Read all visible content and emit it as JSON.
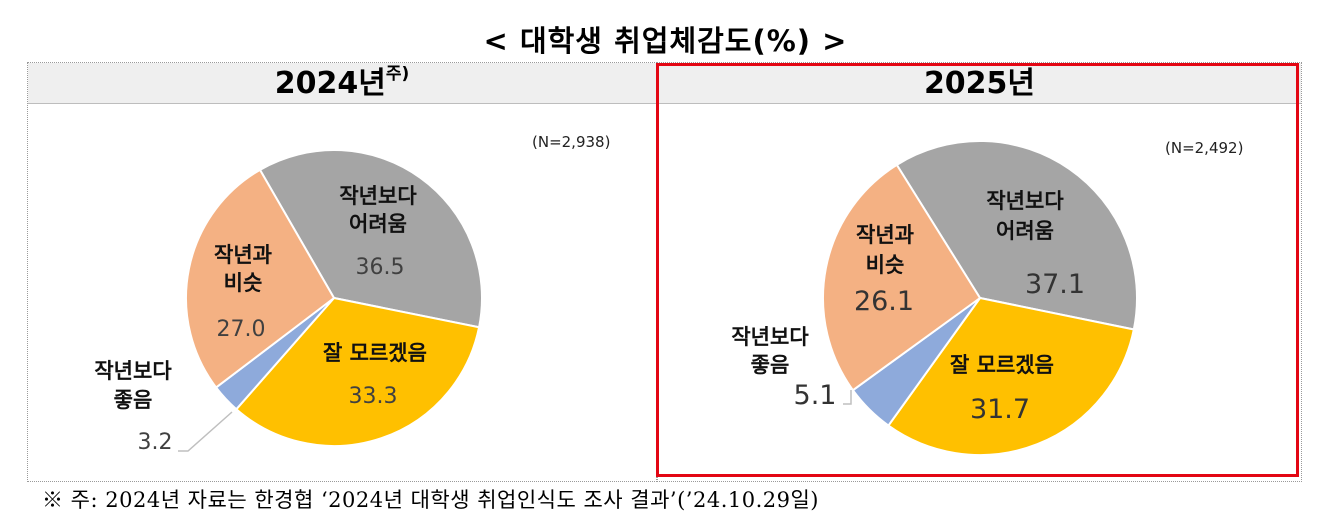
{
  "title": "< 대학생 취업체감도(%) >",
  "panels": [
    {
      "header": "2024년",
      "header_sup": "주)",
      "n": "(N=2,938)"
    },
    {
      "header": "2025년",
      "n": "(N=2,492)"
    }
  ],
  "chart_data": [
    {
      "type": "pie",
      "title": "2024년",
      "categories": [
        "작년보다 어려움",
        "잘 모르겠음",
        "작년보다 좋음",
        "작년과 비슷"
      ],
      "values": [
        36.5,
        33.3,
        3.2,
        27.0
      ],
      "value_labels": [
        "36.5",
        "33.3",
        "3.2",
        "27.0"
      ],
      "colors": [
        "#a5a5a5",
        "#ffc000",
        "#8eaadb",
        "#f4b183"
      ]
    },
    {
      "type": "pie",
      "title": "2025년",
      "categories": [
        "작년보다 어려움",
        "잘 모르겠음",
        "작년보다 좋음",
        "작년과 비슷"
      ],
      "values": [
        37.1,
        31.7,
        5.1,
        26.1
      ],
      "value_labels": [
        "37.1",
        "31.7",
        "5.1",
        "26.1"
      ],
      "colors": [
        "#a5a5a5",
        "#ffc000",
        "#8eaadb",
        "#f4b183"
      ]
    }
  ],
  "slice_labels": {
    "hard_line1": "작년보다",
    "hard_line2": "어려움",
    "unknown": "잘 모르겠음",
    "similar_line1": "작년과",
    "similar_line2": "비슷",
    "better_line1": "작년보다",
    "better_line2": "좋음"
  },
  "footnote": "※ 주: 2024년 자료는 한경협 ‘2024년 대학생 취업인식도 조사 결과’(’24.10.29일)"
}
